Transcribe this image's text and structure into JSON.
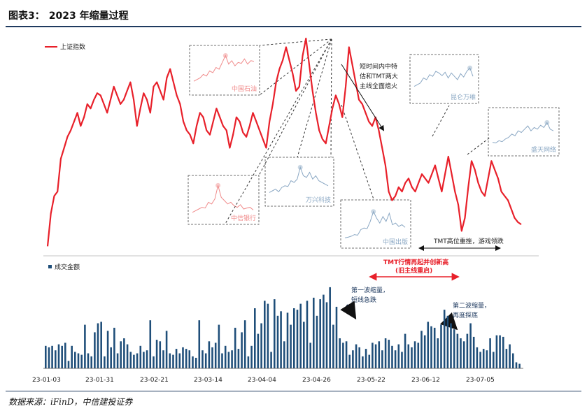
{
  "header": {
    "fig_label": "图表3：",
    "title": "2023 年缩量过程"
  },
  "source": "数据来源：iFinD，中信建投证券",
  "colors": {
    "index_line": "#e8202a",
    "volume_bar": "#1f4e79",
    "annot_navy": "#1f3a5f",
    "inset_red": "#f08a8a",
    "inset_blue": "#8ba8c4"
  },
  "legend": {
    "index": "上证指数",
    "volume": "成交金额"
  },
  "annotations": {
    "short_term": [
      "短时间内中特",
      "估和TMT两大",
      "主线全面熄火"
    ],
    "tmt_high": "TMT高位重挫，游戏领跌",
    "tmt_restart": [
      "TMT行情再起并创新高",
      "(旧主线重启)"
    ],
    "wave1": [
      "第一波缩量，",
      "短线急跌"
    ],
    "wave2": [
      "第二波缩量，",
      "再度探底"
    ]
  },
  "insets": [
    {
      "label": "中国石油",
      "color": "red"
    },
    {
      "label": "中信银行",
      "color": "red"
    },
    {
      "label": "万兴科技",
      "color": "blue"
    },
    {
      "label": "中国出版",
      "color": "blue"
    },
    {
      "label": "昆仑万维",
      "color": "blue"
    },
    {
      "label": "盛天网络",
      "color": "blue"
    }
  ],
  "chart_data": [
    {
      "type": "line",
      "title": "",
      "series": [
        {
          "name": "上证指数",
          "values": [
            5,
            20,
            28,
            30,
            45,
            50,
            55,
            58,
            62,
            66,
            60,
            64,
            70,
            68,
            72,
            75,
            74,
            70,
            66,
            72,
            78,
            74,
            70,
            72,
            76,
            80,
            72,
            60,
            68,
            75,
            72,
            66,
            78,
            80,
            76,
            72,
            82,
            86,
            80,
            74,
            70,
            62,
            58,
            56,
            52,
            60,
            66,
            64,
            58,
            56,
            62,
            68,
            64,
            60,
            58,
            50,
            56,
            64,
            62,
            57,
            55,
            60,
            66,
            62,
            58,
            54,
            50,
            62,
            70,
            80,
            86,
            90,
            96,
            90,
            84,
            76,
            78,
            92,
            100,
            88,
            76,
            66,
            58,
            54,
            52,
            60,
            68,
            74,
            70,
            64,
            78,
            96,
            88,
            80,
            72,
            70,
            66,
            62,
            60,
            64,
            58,
            50,
            42,
            30,
            26,
            28,
            32,
            30,
            34,
            36,
            32,
            30,
            34,
            38,
            36,
            34,
            38,
            42,
            36,
            30,
            38,
            46,
            38,
            30,
            24,
            12,
            18,
            32,
            44,
            40,
            34,
            30,
            28,
            36,
            44,
            40,
            36,
            30,
            28,
            26,
            22,
            18,
            16,
            15
          ]
        }
      ],
      "ylim": [
        0,
        100
      ],
      "x_tick_labels": [
        "23-01-03",
        "23-01-31",
        "23-02-21",
        "23-03-14",
        "23-04-04",
        "23-04-26",
        "23-05-22",
        "23-06-12",
        "23-07-05"
      ]
    },
    {
      "type": "bar",
      "title": "",
      "series": [
        {
          "name": "成交金额",
          "values": [
            30,
            28,
            30,
            24,
            32,
            30,
            34,
            10,
            30,
            22,
            20,
            18,
            58,
            20,
            16,
            48,
            60,
            62,
            16,
            50,
            28,
            54,
            20,
            36,
            40,
            32,
            22,
            18,
            20,
            30,
            22,
            24,
            64,
            16,
            38,
            36,
            24,
            50,
            20,
            18,
            26,
            20,
            28,
            26,
            24,
            16,
            14,
            64,
            24,
            20,
            36,
            28,
            34,
            58,
            20,
            30,
            22,
            24,
            54,
            26,
            48,
            64,
            16,
            30,
            80,
            46,
            60,
            90,
            86,
            22,
            92,
            70,
            76,
            36,
            74,
            58,
            80,
            78,
            86,
            62,
            90,
            34,
            94,
            70,
            92,
            98,
            88,
            108,
            58,
            82,
            40,
            34,
            36,
            18,
            24,
            32,
            28,
            16,
            26,
            18,
            34,
            32,
            36,
            24,
            40,
            38,
            30,
            24,
            32,
            22,
            46,
            32,
            28,
            36,
            34,
            50,
            44,
            62,
            56,
            54,
            40,
            58,
            78,
            70,
            60,
            52,
            46,
            40,
            36,
            46,
            60,
            42,
            28,
            22,
            26,
            24,
            40,
            22,
            44,
            44,
            42,
            26,
            32,
            20,
            8,
            6
          ]
        }
      ],
      "ylim": [
        0,
        120
      ]
    }
  ]
}
